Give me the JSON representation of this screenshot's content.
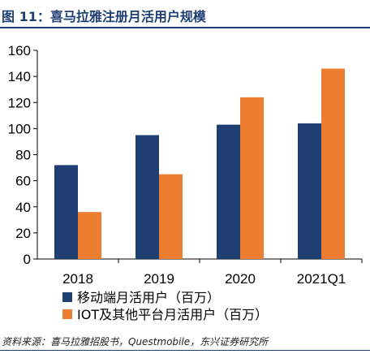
{
  "header": {
    "title": "图 11：喜马拉雅注册月活用户规模"
  },
  "chart_data": {
    "type": "bar",
    "categories": [
      "2018",
      "2019",
      "2020",
      "2021Q1"
    ],
    "series": [
      {
        "name": "移动端月活用户（百万）",
        "values": [
          72,
          95,
          103,
          104
        ],
        "color": "#1f3f73"
      },
      {
        "name": "IOT及其他平台月活用户（百万）",
        "values": [
          36,
          65,
          124,
          146
        ],
        "color": "#ed7d31"
      }
    ],
    "ylim": [
      0,
      160
    ],
    "yticks": [
      "0",
      "20",
      "40",
      "60",
      "80",
      "100",
      "120",
      "140",
      "160"
    ],
    "grid": false,
    "legend": "bottom-left"
  },
  "footer": {
    "source": "资料来源：喜马拉雅招股书，Questmobile，东兴证券研究所"
  }
}
